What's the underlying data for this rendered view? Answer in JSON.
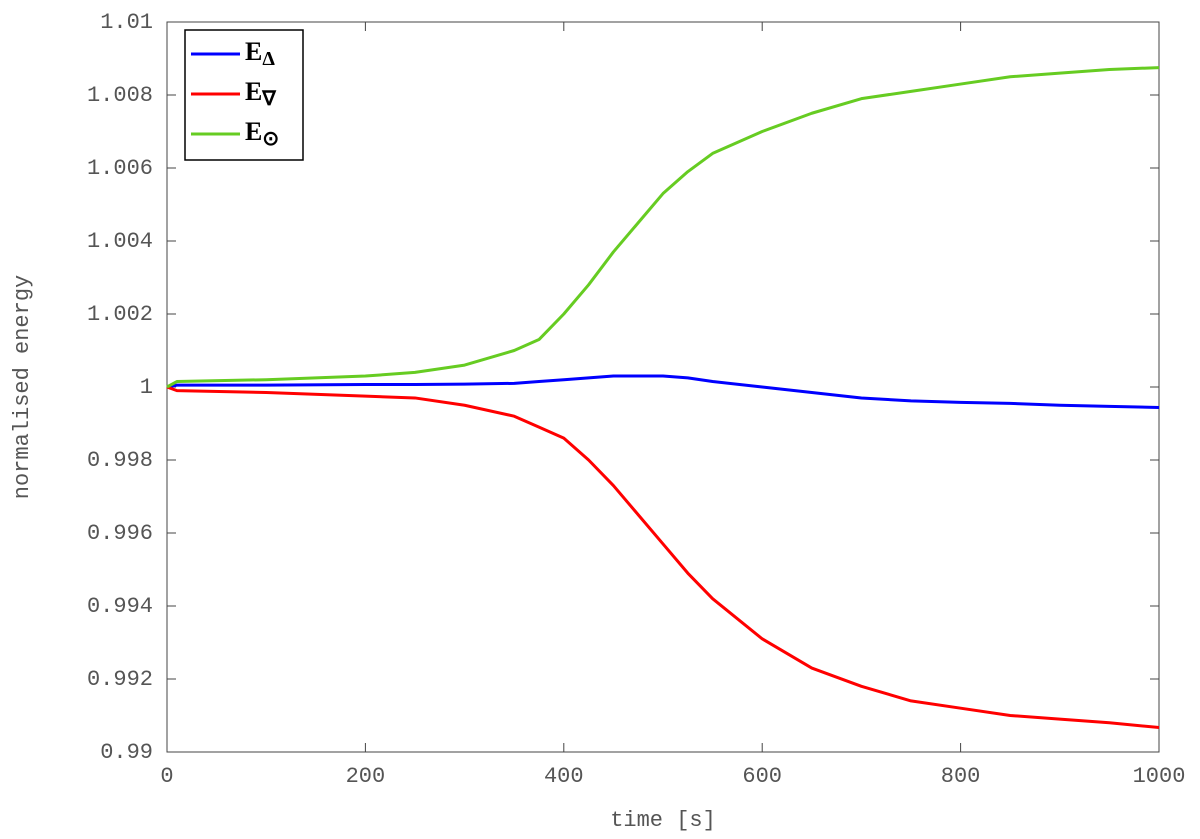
{
  "chart_data": {
    "type": "line",
    "xlabel": "time [s]",
    "ylabel": "normalised energy",
    "x": [
      0,
      10,
      100,
      200,
      250,
      300,
      350,
      375,
      400,
      425,
      450,
      475,
      500,
      525,
      550,
      600,
      650,
      700,
      750,
      800,
      850,
      900,
      950,
      1000
    ],
    "series": [
      {
        "name": "EΔ",
        "color": "#0000ff",
        "values": [
          1.0,
          1.00005,
          1.00005,
          1.00007,
          1.00007,
          1.00008,
          1.0001,
          1.00015,
          1.0002,
          1.00025,
          1.0003,
          1.0003,
          1.0003,
          1.00025,
          1.00015,
          1.0,
          0.99985,
          0.9997,
          0.99962,
          0.99958,
          0.99955,
          0.9995,
          0.99947,
          0.99944
        ]
      },
      {
        "name": "E∇",
        "color": "#ff0000",
        "values": [
          1.0,
          0.9999,
          0.99985,
          0.99975,
          0.9997,
          0.9995,
          0.9992,
          0.9989,
          0.9986,
          0.998,
          0.9973,
          0.9965,
          0.9957,
          0.9949,
          0.9942,
          0.9931,
          0.9923,
          0.9918,
          0.9914,
          0.9912,
          0.991,
          0.9909,
          0.9908,
          0.99067
        ]
      },
      {
        "name": "E⊙",
        "color": "#66cc22",
        "values": [
          1.0,
          1.00015,
          1.0002,
          1.0003,
          1.0004,
          1.0006,
          1.001,
          1.0013,
          1.002,
          1.0028,
          1.0037,
          1.0045,
          1.0053,
          1.0059,
          1.0064,
          1.007,
          1.0075,
          1.0079,
          1.0081,
          1.0083,
          1.0085,
          1.0086,
          1.0087,
          1.00875
        ]
      }
    ],
    "xlim": [
      0,
      1000
    ],
    "xticks": [
      0,
      200,
      400,
      600,
      800,
      1000
    ],
    "ylim": [
      0.99,
      1.01
    ],
    "yticks": [
      0.99,
      0.992,
      0.994,
      0.996,
      0.998,
      1,
      1.002,
      1.004,
      1.006,
      1.008,
      1.01
    ],
    "legend": "upper left",
    "grid": false
  }
}
